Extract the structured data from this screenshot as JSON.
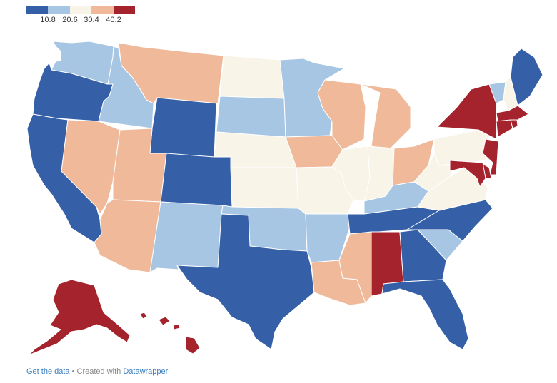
{
  "legend": {
    "colors": [
      "#3560a8",
      "#a7c6e3",
      "#f8f4e8",
      "#efb99a",
      "#a4232d"
    ],
    "ticks": [
      "10.8",
      "20.6",
      "30.4",
      "40.2"
    ]
  },
  "footer": {
    "link1": "Get the data",
    "separator": " • Created with ",
    "link2": "Datawrapper"
  },
  "map": {
    "states": [
      {
        "id": "WA",
        "bin": 1
      },
      {
        "id": "OR",
        "bin": 0
      },
      {
        "id": "CA",
        "bin": 0
      },
      {
        "id": "ID",
        "bin": 1
      },
      {
        "id": "NV",
        "bin": 3
      },
      {
        "id": "MT",
        "bin": 3
      },
      {
        "id": "WY",
        "bin": 0
      },
      {
        "id": "UT",
        "bin": 3
      },
      {
        "id": "AZ",
        "bin": 3
      },
      {
        "id": "CO",
        "bin": 0
      },
      {
        "id": "NM",
        "bin": 1
      },
      {
        "id": "ND",
        "bin": 2
      },
      {
        "id": "SD",
        "bin": 1
      },
      {
        "id": "NE",
        "bin": 2
      },
      {
        "id": "KS",
        "bin": 2
      },
      {
        "id": "OK",
        "bin": 1
      },
      {
        "id": "TX",
        "bin": 0
      },
      {
        "id": "MN",
        "bin": 1
      },
      {
        "id": "IA",
        "bin": 3
      },
      {
        "id": "MO",
        "bin": 2
      },
      {
        "id": "AR",
        "bin": 1
      },
      {
        "id": "LA",
        "bin": 3
      },
      {
        "id": "WI",
        "bin": 3
      },
      {
        "id": "IL",
        "bin": 2
      },
      {
        "id": "MI",
        "bin": 3
      },
      {
        "id": "IN",
        "bin": 2
      },
      {
        "id": "OH",
        "bin": 3
      },
      {
        "id": "KY",
        "bin": 1
      },
      {
        "id": "TN",
        "bin": 0
      },
      {
        "id": "MS",
        "bin": 3
      },
      {
        "id": "AL",
        "bin": 4
      },
      {
        "id": "GA",
        "bin": 0
      },
      {
        "id": "FL",
        "bin": 0
      },
      {
        "id": "SC",
        "bin": 1
      },
      {
        "id": "NC",
        "bin": 0
      },
      {
        "id": "VA",
        "bin": 2
      },
      {
        "id": "WV",
        "bin": 2
      },
      {
        "id": "PA",
        "bin": 2
      },
      {
        "id": "NY",
        "bin": 4
      },
      {
        "id": "VT",
        "bin": 1
      },
      {
        "id": "NH",
        "bin": 2
      },
      {
        "id": "ME",
        "bin": 0
      },
      {
        "id": "MA",
        "bin": 4
      },
      {
        "id": "CT",
        "bin": 4
      },
      {
        "id": "RI",
        "bin": 4
      },
      {
        "id": "NJ",
        "bin": 4
      },
      {
        "id": "DE",
        "bin": 4
      },
      {
        "id": "MD",
        "bin": 4
      },
      {
        "id": "AK",
        "bin": 4
      },
      {
        "id": "HI",
        "bin": 4
      }
    ]
  }
}
